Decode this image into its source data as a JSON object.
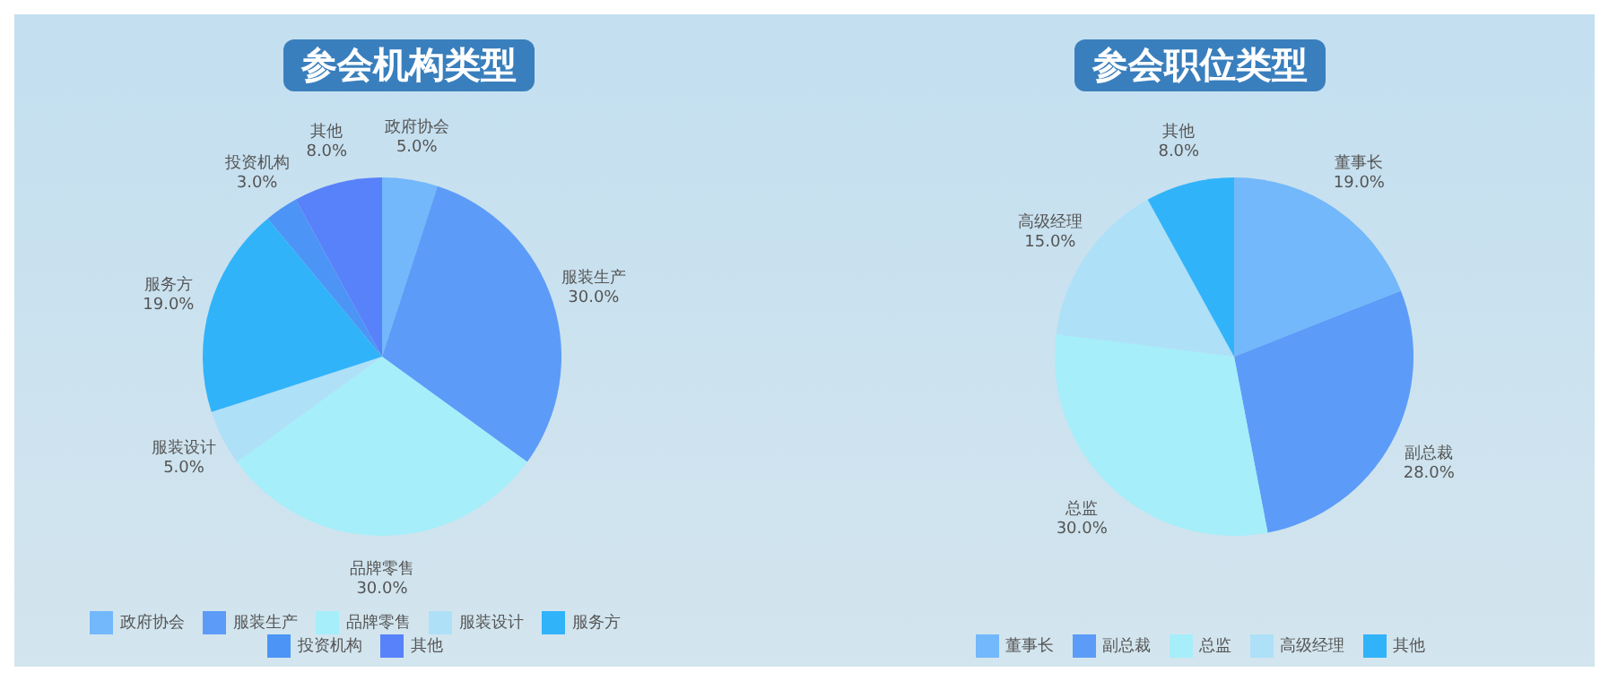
{
  "chart_data": [
    {
      "type": "pie",
      "title": "参会机构类型",
      "categories": [
        "政府协会",
        "服装生产",
        "品牌零售",
        "服装设计",
        "服务方",
        "投资机构",
        "其他"
      ],
      "values": [
        5,
        30,
        30,
        5,
        19,
        3,
        8
      ],
      "value_labels": [
        "5.0%",
        "30.0%",
        "30.0%",
        "5.0%",
        "19.0%",
        "3.0%",
        "8.0%"
      ],
      "colors": [
        "#72b8fb",
        "#5c9cf8",
        "#a5eefa",
        "#aee0f8",
        "#31b3fa",
        "#4c94f5",
        "#5882f9"
      ],
      "legend": "bottom"
    },
    {
      "type": "pie",
      "title": "参会职位类型",
      "categories": [
        "董事长",
        "副总裁",
        "总监",
        "高级经理",
        "其他"
      ],
      "values": [
        19,
        28,
        30,
        15,
        8
      ],
      "value_labels": [
        "19.0%",
        "28.0%",
        "30.0%",
        "15.0%",
        "8.0%"
      ],
      "colors": [
        "#72b8fb",
        "#5c9cf8",
        "#a5eefa",
        "#aee0f8",
        "#31b3fa"
      ],
      "legend": "bottom"
    }
  ]
}
